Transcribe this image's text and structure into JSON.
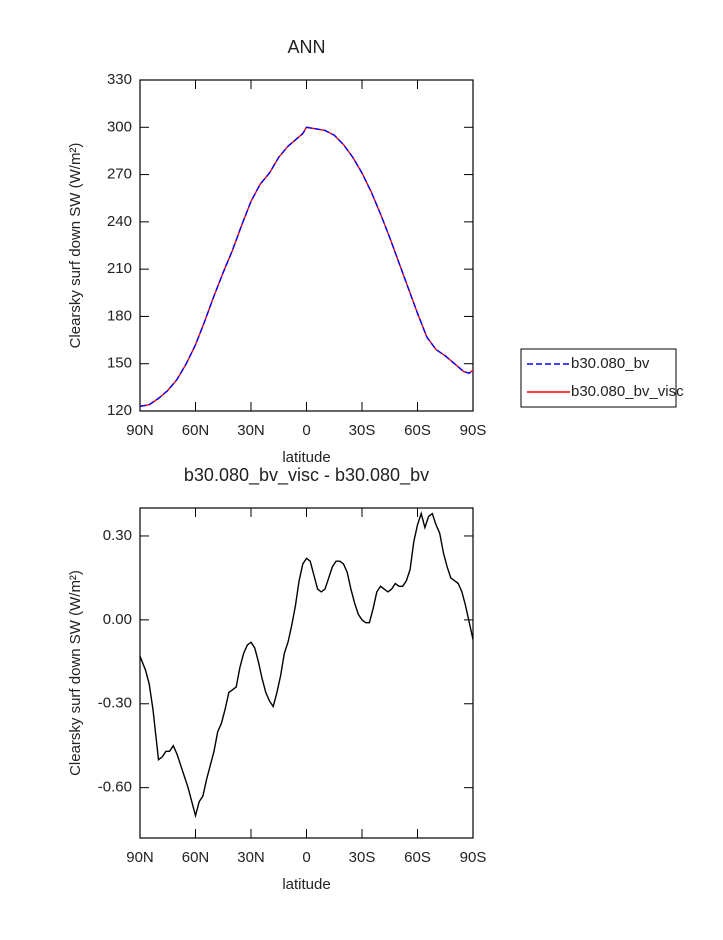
{
  "chart_data": [
    {
      "type": "line",
      "title": "ANN",
      "xlabel": "latitude",
      "ylabel": "Clearsky surf down SW (W/m²)",
      "x": [
        90,
        85,
        80,
        75,
        70,
        65,
        60,
        55,
        50,
        45,
        40,
        35,
        30,
        25,
        20,
        15,
        10,
        5,
        2,
        0,
        -5,
        -10,
        -15,
        -20,
        -25,
        -30,
        -35,
        -40,
        -45,
        -50,
        -55,
        -60,
        -65,
        -70,
        -75,
        -80,
        -85,
        -88,
        -90
      ],
      "xlim": [
        90,
        -90
      ],
      "xticks": [
        {
          "value": 90,
          "label": "90N"
        },
        {
          "value": 60,
          "label": "60N"
        },
        {
          "value": 30,
          "label": "30N"
        },
        0,
        {
          "value": -30,
          "label": "30S"
        },
        {
          "value": -60,
          "label": "60S"
        },
        {
          "value": -90,
          "label": "90S"
        }
      ],
      "ylim": [
        120,
        330
      ],
      "yticks": [
        120,
        150,
        180,
        210,
        240,
        270,
        300,
        330
      ],
      "legend": "outside-right",
      "series": [
        {
          "name": "b30.080_bv",
          "color": "#0000ff",
          "linestyle": "dashed",
          "values": [
            123,
            124,
            128,
            133,
            140,
            150,
            162,
            177,
            193,
            208,
            222,
            238,
            253,
            264,
            271,
            281,
            288,
            293,
            296,
            300,
            299,
            298,
            295,
            289,
            281,
            271,
            259,
            245,
            230,
            214,
            198,
            182,
            167,
            159,
            155,
            150,
            145,
            144,
            146
          ]
        },
        {
          "name": "b30.080_bv_visc",
          "color": "#ff0000",
          "linestyle": "solid",
          "values": [
            123,
            124,
            128,
            133,
            140,
            150,
            162,
            177,
            193,
            208,
            222,
            238,
            253,
            264,
            271,
            281,
            288,
            293,
            296,
            300,
            299,
            298,
            295,
            289,
            281,
            271,
            259,
            245,
            230,
            214,
            198,
            182,
            167,
            159,
            155,
            150,
            145,
            144,
            146
          ]
        }
      ]
    },
    {
      "type": "line",
      "title": "b30.080_bv_visc - b30.080_bv",
      "xlabel": "latitude",
      "ylabel": "Clearsky surf down SW (W/m²)",
      "x": [
        90,
        87,
        85,
        83,
        81,
        80,
        78,
        76,
        74,
        72,
        70,
        68,
        66,
        64,
        62,
        60,
        58,
        56,
        54,
        52,
        50,
        48,
        46,
        44,
        42,
        40,
        38,
        36,
        34,
        32,
        30,
        28,
        26,
        24,
        22,
        20,
        18,
        16,
        14,
        12,
        10,
        8,
        6,
        4,
        2,
        0,
        -2,
        -4,
        -6,
        -8,
        -10,
        -12,
        -14,
        -16,
        -18,
        -20,
        -22,
        -24,
        -26,
        -28,
        -30,
        -32,
        -34,
        -36,
        -38,
        -40,
        -42,
        -44,
        -46,
        -48,
        -50,
        -52,
        -54,
        -56,
        -58,
        -60,
        -62,
        -64,
        -66,
        -68,
        -70,
        -72,
        -74,
        -76,
        -78,
        -80,
        -82,
        -84,
        -86,
        -88,
        -90
      ],
      "xlim": [
        90,
        -90
      ],
      "xticks": [
        {
          "value": 90,
          "label": "90N"
        },
        {
          "value": 60,
          "label": "60N"
        },
        {
          "value": 30,
          "label": "30N"
        },
        0,
        {
          "value": -30,
          "label": "30S"
        },
        {
          "value": -60,
          "label": "60S"
        },
        {
          "value": -90,
          "label": "90S"
        }
      ],
      "ylim": [
        -0.78,
        0.4
      ],
      "yticks": [
        {
          "value": -0.6,
          "label": "-0.60"
        },
        {
          "value": -0.3,
          "label": "-0.30"
        },
        {
          "value": 0,
          "label": "0.00"
        },
        {
          "value": 0.3,
          "label": "0.30"
        }
      ],
      "series": [
        {
          "color": "#000000",
          "linestyle": "solid",
          "values": [
            -0.13,
            -0.18,
            -0.23,
            -0.32,
            -0.44,
            -0.5,
            -0.49,
            -0.47,
            -0.47,
            -0.45,
            -0.48,
            -0.52,
            -0.56,
            -0.6,
            -0.65,
            -0.7,
            -0.65,
            -0.63,
            -0.57,
            -0.52,
            -0.47,
            -0.4,
            -0.37,
            -0.32,
            -0.26,
            -0.25,
            -0.24,
            -0.17,
            -0.12,
            -0.09,
            -0.08,
            -0.1,
            -0.15,
            -0.21,
            -0.26,
            -0.29,
            -0.31,
            -0.26,
            -0.2,
            -0.12,
            -0.08,
            -0.02,
            0.05,
            0.14,
            0.2,
            0.22,
            0.21,
            0.16,
            0.11,
            0.1,
            0.11,
            0.15,
            0.19,
            0.21,
            0.21,
            0.2,
            0.17,
            0.11,
            0.06,
            0.02,
            0.0,
            -0.01,
            -0.01,
            0.04,
            0.1,
            0.12,
            0.11,
            0.1,
            0.11,
            0.13,
            0.12,
            0.12,
            0.14,
            0.18,
            0.28,
            0.34,
            0.38,
            0.33,
            0.37,
            0.38,
            0.34,
            0.31,
            0.24,
            0.19,
            0.15,
            0.14,
            0.13,
            0.1,
            0.05,
            -0.01,
            -0.07
          ]
        }
      ]
    }
  ]
}
